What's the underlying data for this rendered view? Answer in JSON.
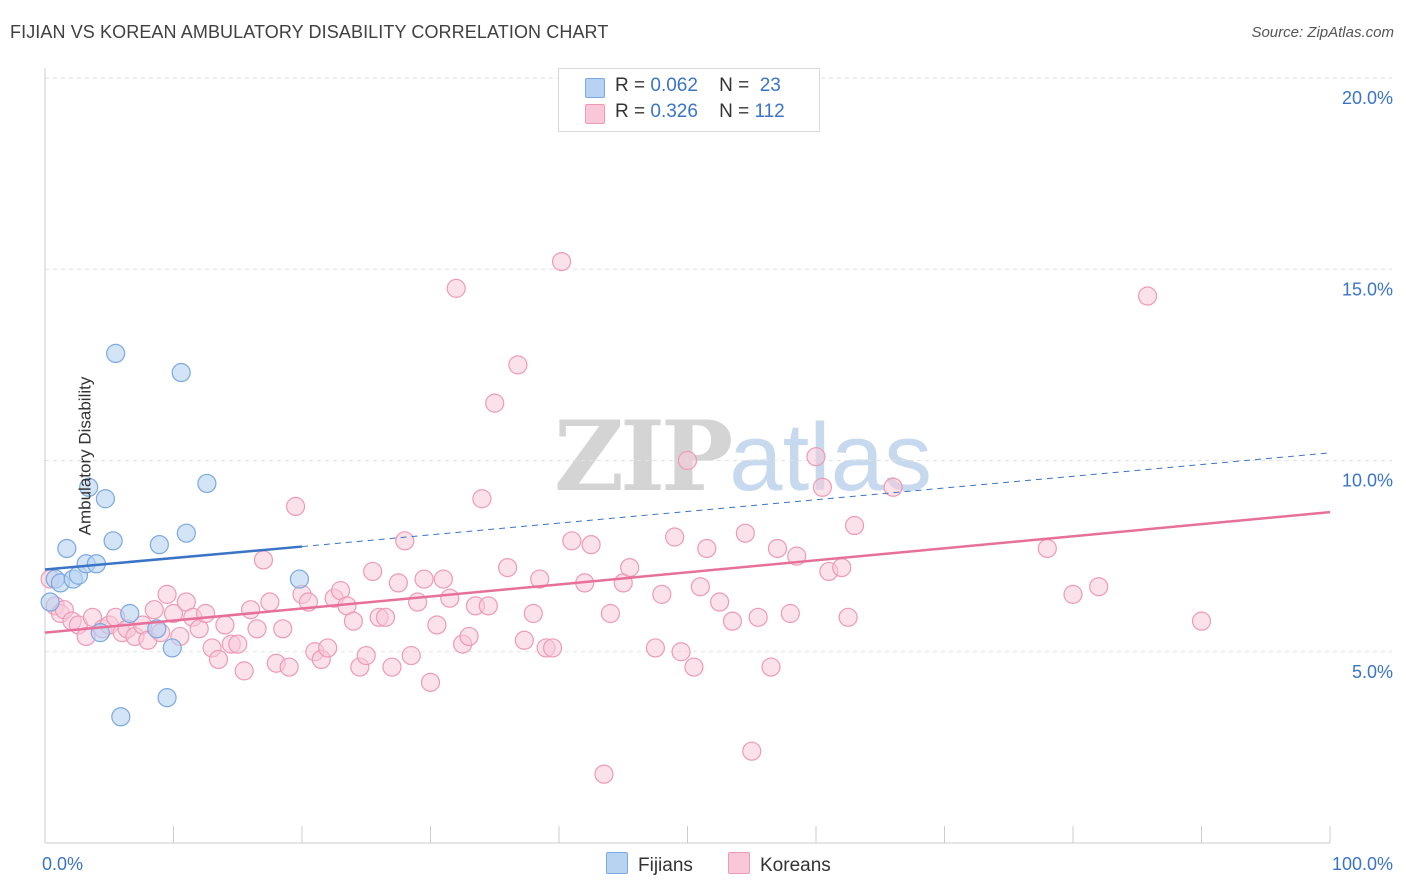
{
  "title": "FIJIAN VS KOREAN AMBULATORY DISABILITY CORRELATION CHART",
  "source": "Source: ZipAtlas.com",
  "watermark": {
    "zip": "ZIP",
    "atlas": "atlas"
  },
  "legend": {
    "fijians": {
      "r_label": "R =",
      "r_value": "0.062",
      "n_label": "N =",
      "n_value": "23"
    },
    "koreans": {
      "r_label": "R =",
      "r_value": "0.326",
      "n_label": "N =",
      "n_value": "112"
    }
  },
  "colors": {
    "fijians_fill": "#b8d2f2",
    "fijians_stroke": "#7aa8e0",
    "fijians_line": "#3a74c6",
    "koreans_fill": "#f8c8d8",
    "koreans_stroke": "#ee9ab6",
    "koreans_line": "#e7709a",
    "axis_tick_text": "#3a74c6",
    "grid": "#e2e2e2"
  },
  "chart_data": {
    "type": "scatter",
    "title": "FIJIAN VS KOREAN AMBULATORY DISABILITY CORRELATION CHART",
    "xlabel": "",
    "ylabel": "Ambulatory Disability",
    "xlim": [
      0,
      100
    ],
    "ylim": [
      0,
      20
    ],
    "x_tick_labels": [
      "0.0%",
      "100.0%"
    ],
    "y_ticks": [
      5,
      10,
      15,
      20
    ],
    "y_tick_labels": [
      "5.0%",
      "10.0%",
      "15.0%",
      "20.0%"
    ],
    "grid": "horizontal dashed",
    "legend_position": "bottom-center",
    "series": [
      {
        "name": "Fijians",
        "points": [
          [
            0.4,
            6.3
          ],
          [
            0.8,
            6.9
          ],
          [
            1.2,
            6.8
          ],
          [
            1.7,
            7.7
          ],
          [
            2.2,
            6.9
          ],
          [
            2.6,
            7.0
          ],
          [
            3.2,
            7.3
          ],
          [
            3.4,
            9.3
          ],
          [
            4.0,
            7.3
          ],
          [
            4.3,
            5.5
          ],
          [
            4.7,
            9.0
          ],
          [
            5.3,
            7.9
          ],
          [
            5.5,
            12.8
          ],
          [
            5.9,
            3.3
          ],
          [
            6.6,
            6.0
          ],
          [
            8.7,
            5.6
          ],
          [
            8.9,
            7.8
          ],
          [
            9.5,
            3.8
          ],
          [
            9.9,
            5.1
          ],
          [
            10.6,
            12.3
          ],
          [
            11.0,
            8.1
          ],
          [
            12.6,
            9.4
          ],
          [
            19.8,
            6.9
          ]
        ],
        "trend": {
          "x": [
            0,
            20
          ],
          "y": [
            7.15,
            7.75
          ],
          "extended_x": [
            20,
            100
          ],
          "extended_y": [
            7.75,
            10.2
          ]
        }
      },
      {
        "name": "Koreans",
        "points": [
          [
            0.4,
            6.9
          ],
          [
            0.8,
            6.2
          ],
          [
            1.2,
            6.0
          ],
          [
            1.5,
            6.1
          ],
          [
            2.1,
            5.8
          ],
          [
            2.6,
            5.7
          ],
          [
            3.2,
            5.4
          ],
          [
            3.7,
            5.9
          ],
          [
            4.5,
            5.6
          ],
          [
            5.0,
            5.7
          ],
          [
            5.5,
            5.9
          ],
          [
            6.0,
            5.5
          ],
          [
            6.4,
            5.6
          ],
          [
            7.0,
            5.4
          ],
          [
            7.6,
            5.7
          ],
          [
            8.0,
            5.3
          ],
          [
            8.5,
            6.1
          ],
          [
            9.0,
            5.5
          ],
          [
            9.5,
            6.5
          ],
          [
            10.0,
            6.0
          ],
          [
            10.5,
            5.4
          ],
          [
            11.0,
            6.3
          ],
          [
            11.5,
            5.9
          ],
          [
            12.0,
            5.6
          ],
          [
            12.5,
            6.0
          ],
          [
            13.0,
            5.1
          ],
          [
            13.5,
            4.8
          ],
          [
            14.0,
            5.7
          ],
          [
            14.5,
            5.2
          ],
          [
            15.0,
            5.2
          ],
          [
            15.5,
            4.5
          ],
          [
            16.0,
            6.1
          ],
          [
            16.5,
            5.6
          ],
          [
            17.0,
            7.4
          ],
          [
            17.5,
            6.3
          ],
          [
            18.0,
            4.7
          ],
          [
            18.5,
            5.6
          ],
          [
            19.0,
            4.6
          ],
          [
            19.5,
            8.8
          ],
          [
            20.0,
            6.5
          ],
          [
            20.5,
            6.3
          ],
          [
            21.0,
            5.0
          ],
          [
            21.5,
            4.8
          ],
          [
            22.0,
            5.1
          ],
          [
            22.5,
            6.4
          ],
          [
            23.0,
            6.6
          ],
          [
            23.5,
            6.2
          ],
          [
            24.0,
            5.8
          ],
          [
            24.5,
            4.6
          ],
          [
            25.0,
            4.9
          ],
          [
            25.5,
            7.1
          ],
          [
            26.0,
            5.9
          ],
          [
            26.5,
            5.9
          ],
          [
            27.0,
            4.6
          ],
          [
            27.5,
            6.8
          ],
          [
            28.0,
            7.9
          ],
          [
            28.5,
            4.9
          ],
          [
            29.0,
            6.3
          ],
          [
            29.5,
            6.9
          ],
          [
            30.0,
            4.2
          ],
          [
            30.5,
            5.7
          ],
          [
            31.0,
            6.9
          ],
          [
            31.5,
            6.4
          ],
          [
            32.0,
            14.5
          ],
          [
            32.5,
            5.2
          ],
          [
            33.0,
            5.4
          ],
          [
            33.5,
            6.2
          ],
          [
            34.0,
            9.0
          ],
          [
            34.5,
            6.2
          ],
          [
            35.0,
            11.5
          ],
          [
            36.0,
            7.2
          ],
          [
            36.8,
            12.5
          ],
          [
            37.3,
            5.3
          ],
          [
            38.0,
            6.0
          ],
          [
            38.5,
            6.9
          ],
          [
            39.0,
            5.1
          ],
          [
            39.5,
            5.1
          ],
          [
            40.2,
            15.2
          ],
          [
            41.0,
            7.9
          ],
          [
            42.0,
            6.8
          ],
          [
            42.5,
            7.8
          ],
          [
            43.5,
            1.8
          ],
          [
            44.0,
            6.0
          ],
          [
            45.0,
            6.8
          ],
          [
            45.5,
            7.2
          ],
          [
            47.5,
            5.1
          ],
          [
            48.0,
            6.5
          ],
          [
            49.0,
            8.0
          ],
          [
            49.5,
            5.0
          ],
          [
            50.0,
            10.0
          ],
          [
            50.5,
            4.6
          ],
          [
            51.0,
            6.7
          ],
          [
            51.5,
            7.7
          ],
          [
            52.5,
            6.3
          ],
          [
            53.5,
            5.8
          ],
          [
            54.5,
            8.1
          ],
          [
            55.0,
            2.4
          ],
          [
            55.5,
            5.9
          ],
          [
            56.5,
            4.6
          ],
          [
            57.0,
            7.7
          ],
          [
            58.0,
            6.0
          ],
          [
            58.5,
            7.5
          ],
          [
            60.0,
            10.1
          ],
          [
            60.5,
            9.3
          ],
          [
            61.0,
            7.1
          ],
          [
            62.0,
            7.2
          ],
          [
            62.5,
            5.9
          ],
          [
            63.0,
            8.3
          ],
          [
            66.0,
            9.3
          ],
          [
            78.0,
            7.7
          ],
          [
            80.0,
            6.5
          ],
          [
            82.0,
            6.7
          ],
          [
            85.8,
            14.3
          ],
          [
            90.0,
            5.8
          ]
        ],
        "trend": {
          "x": [
            0,
            100
          ],
          "y": [
            5.5,
            8.65
          ]
        }
      }
    ]
  }
}
